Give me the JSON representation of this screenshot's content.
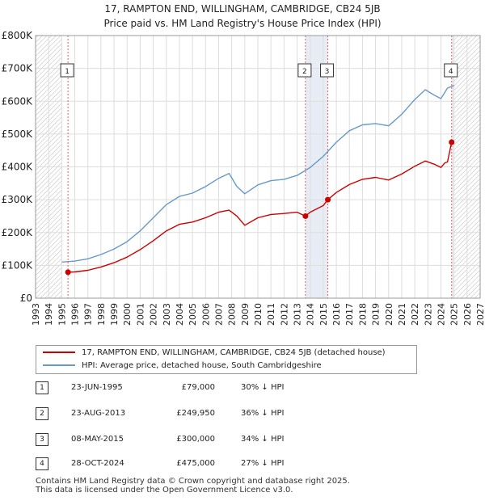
{
  "title_line1": "17, RAMPTON END, WILLINGHAM, CAMBRIDGE, CB24 5JB",
  "title_line2": "Price paid vs. HM Land Registry's House Price Index (HPI)",
  "colors": {
    "property": "#cc0000",
    "hpi": "#6699cc",
    "shade": "#e8edf5",
    "marker_line": "#e06060"
  },
  "chart_data": {
    "type": "line",
    "title": "Price paid vs. HM Land Registry's House Price Index (HPI)",
    "xlabel": "",
    "ylabel": "",
    "xlim": [
      1993,
      2027
    ],
    "ylim": [
      0,
      800000
    ],
    "x_ticks": [
      "1993",
      "1994",
      "1995",
      "1996",
      "1997",
      "1998",
      "1999",
      "2000",
      "2001",
      "2002",
      "2003",
      "2004",
      "2005",
      "2006",
      "2007",
      "2008",
      "2009",
      "2010",
      "2011",
      "2012",
      "2013",
      "2014",
      "2015",
      "2016",
      "2017",
      "2018",
      "2019",
      "2020",
      "2021",
      "2022",
      "2023",
      "2024",
      "2025",
      "2026",
      "2027"
    ],
    "y_ticks": [
      {
        "value": 0,
        "label": "£0"
      },
      {
        "value": 100000,
        "label": "£100K"
      },
      {
        "value": 200000,
        "label": "£200K"
      },
      {
        "value": 300000,
        "label": "£300K"
      },
      {
        "value": 400000,
        "label": "£400K"
      },
      {
        "value": 500000,
        "label": "£500K"
      },
      {
        "value": 600000,
        "label": "£600K"
      },
      {
        "value": 700000,
        "label": "£700K"
      },
      {
        "value": 800000,
        "label": "£800K"
      }
    ],
    "grid": true,
    "series": [
      {
        "name": "17, RAMPTON END, WILLINGHAM, CAMBRIDGE, CB24 5JB (detached house)",
        "x": [
          1995.48,
          1996.0,
          1997.0,
          1998.0,
          1999.0,
          2000.0,
          2001.0,
          2002.0,
          2003.0,
          2004.0,
          2005.0,
          2006.0,
          2007.0,
          2007.8,
          2008.4,
          2009.0,
          2010.0,
          2011.0,
          2012.0,
          2013.0,
          2013.64,
          2014.0,
          2015.0,
          2015.35,
          2016.0,
          2017.0,
          2018.0,
          2019.0,
          2020.0,
          2021.0,
          2022.0,
          2022.8,
          2023.5,
          2024.0,
          2024.3,
          2024.5,
          2024.82,
          2025.0
        ],
        "values": [
          79000,
          80000,
          85000,
          95000,
          108000,
          125000,
          148000,
          175000,
          205000,
          225000,
          232000,
          245000,
          262000,
          268000,
          250000,
          222000,
          245000,
          255000,
          258000,
          262000,
          249950,
          262000,
          282000,
          300000,
          322000,
          346000,
          362000,
          368000,
          360000,
          378000,
          402000,
          418000,
          408000,
          398000,
          412000,
          415000,
          475000,
          478000
        ]
      },
      {
        "name": "HPI: Average price, detached house, South Cambridgeshire",
        "x": [
          1995.0,
          1996.0,
          1997.0,
          1998.0,
          1999.0,
          2000.0,
          2001.0,
          2002.0,
          2003.0,
          2004.0,
          2005.0,
          2006.0,
          2007.0,
          2007.8,
          2008.4,
          2009.0,
          2010.0,
          2011.0,
          2012.0,
          2013.0,
          2014.0,
          2015.0,
          2016.0,
          2017.0,
          2018.0,
          2019.0,
          2020.0,
          2021.0,
          2022.0,
          2022.8,
          2023.5,
          2024.0,
          2024.5,
          2025.0
        ],
        "values": [
          110000,
          113000,
          120000,
          133000,
          150000,
          172000,
          205000,
          245000,
          285000,
          310000,
          320000,
          340000,
          365000,
          380000,
          340000,
          318000,
          345000,
          358000,
          362000,
          374000,
          398000,
          432000,
          475000,
          510000,
          528000,
          532000,
          525000,
          560000,
          605000,
          635000,
          618000,
          608000,
          640000,
          648000
        ]
      }
    ],
    "sale_markers": [
      {
        "num": "1",
        "x": 1995.48,
        "value": 79000
      },
      {
        "num": "2",
        "x": 2013.64,
        "value": 249950
      },
      {
        "num": "3",
        "x": 2015.35,
        "value": 300000
      },
      {
        "num": "4",
        "x": 2024.82,
        "value": 475000
      }
    ],
    "hatched_before": 1995,
    "hatched_after": 2025
  },
  "legend": {
    "property_label": "17, RAMPTON END, WILLINGHAM, CAMBRIDGE, CB24 5JB (detached house)",
    "hpi_label": "HPI: Average price, detached house, South Cambridgeshire"
  },
  "transactions": [
    {
      "num": "1",
      "date": "23-JUN-1995",
      "price": "£79,000",
      "hpi": "30% ↓ HPI"
    },
    {
      "num": "2",
      "date": "23-AUG-2013",
      "price": "£249,950",
      "hpi": "36% ↓ HPI"
    },
    {
      "num": "3",
      "date": "08-MAY-2015",
      "price": "£300,000",
      "hpi": "34% ↓ HPI"
    },
    {
      "num": "4",
      "date": "28-OCT-2024",
      "price": "£475,000",
      "hpi": "27% ↓ HPI"
    }
  ],
  "footer_line1": "Contains HM Land Registry data © Crown copyright and database right 2025.",
  "footer_line2": "This data is licensed under the Open Government Licence v3.0."
}
